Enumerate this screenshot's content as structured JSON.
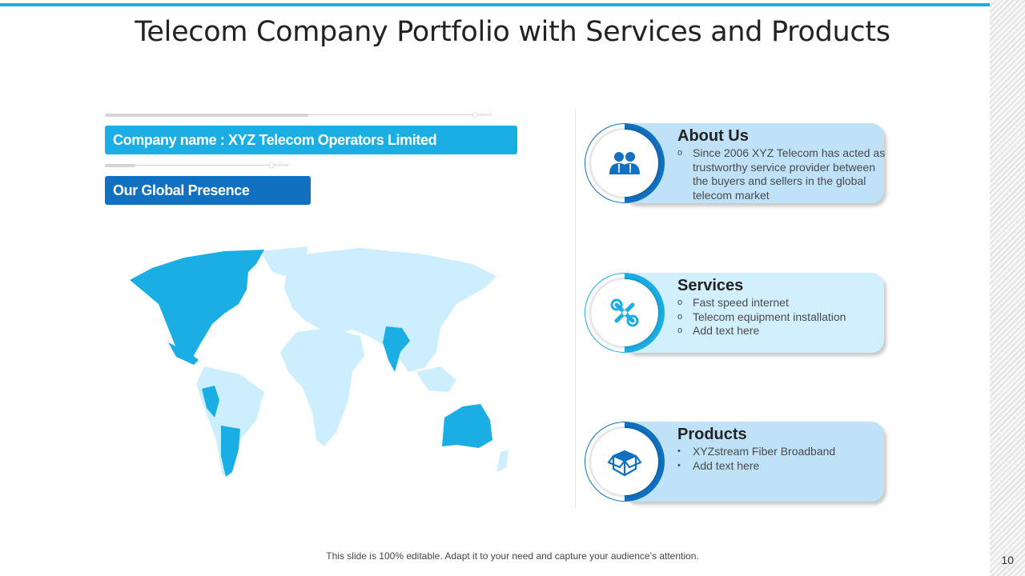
{
  "slide": {
    "title": "Telecom Company Portfolio with Services and Products",
    "footer": "This slide is 100% editable. Adapt it to your need and capture your audience’s attention.",
    "page_number": "10"
  },
  "left": {
    "company_tag": "Company name : XYZ Telecom Operators Limited",
    "presence_tag": "Our Global Presence",
    "progress_tip": "○›››››››",
    "map": {
      "highlight_color": "#1aaee5",
      "base_color": "#cdeefc",
      "highlighted_regions": [
        "North America",
        "Central America",
        "Peru",
        "Argentina",
        "India",
        "Australia"
      ]
    }
  },
  "cards": {
    "about": {
      "heading": "About Us",
      "icon": "users-icon",
      "bullet": "o",
      "items": [
        "Since 2006 XYZ  Telecom has acted as trustworthy service provider between the buyers and sellers in the global telecom market"
      ]
    },
    "services": {
      "heading": "Services",
      "icon": "tools-icon",
      "bullet": "o",
      "items": [
        "Fast speed internet",
        "Telecom equipment installation",
        "Add text here"
      ]
    },
    "products": {
      "heading": "Products",
      "icon": "box-icon",
      "bullet": "•",
      "items": [
        "XYZstream Fiber Broadband",
        "Add text here"
      ]
    }
  },
  "colors": {
    "accent_light": "#1aaee5",
    "accent_dark": "#1170c0",
    "card_bg_light": "#bfe2f9",
    "card_bg_pale": "#d2effd"
  }
}
